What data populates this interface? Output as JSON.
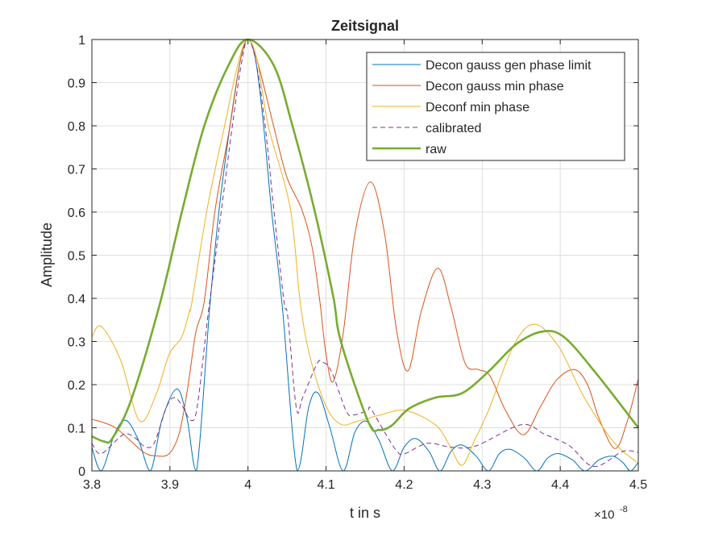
{
  "chart_data": {
    "type": "line",
    "title": "Zeitsignal",
    "xlabel": "t in s",
    "ylabel": "Amplitude",
    "x_exponent_base": "×10",
    "x_exponent_power": "-8",
    "xlim": [
      3.8,
      4.5
    ],
    "ylim": [
      0,
      1
    ],
    "xticks": [
      3.8,
      3.9,
      4,
      4.1,
      4.2,
      4.3,
      4.4,
      4.5
    ],
    "xtick_labels": [
      "3.8",
      "3.9",
      "4",
      "4.1",
      "4.2",
      "4.3",
      "4.4",
      "4.5"
    ],
    "yticks": [
      0,
      0.1,
      0.2,
      0.3,
      0.4,
      0.5,
      0.6,
      0.7,
      0.8,
      0.9,
      1
    ],
    "ytick_labels": [
      "0",
      "0.1",
      "0.2",
      "0.3",
      "0.4",
      "0.5",
      "0.6",
      "0.7",
      "0.8",
      "0.9",
      "1"
    ],
    "grid": true,
    "legend_position": "top-right",
    "series": [
      {
        "name": "Decon gauss gen phase limit",
        "color": "#0072BD",
        "width": 1,
        "dash": "",
        "points": [
          [
            3.8,
            0.055
          ],
          [
            3.812,
            0
          ],
          [
            3.83,
            0.09
          ],
          [
            3.844,
            0.117
          ],
          [
            3.86,
            0.07
          ],
          [
            3.875,
            0
          ],
          [
            3.89,
            0.12
          ],
          [
            3.909,
            0.19
          ],
          [
            3.922,
            0.12
          ],
          [
            3.934,
            0
          ],
          [
            3.951,
            0.38
          ],
          [
            3.963,
            0.606
          ],
          [
            3.977,
            0.8
          ],
          [
            3.99,
            0.95
          ],
          [
            4.0,
            1.0
          ],
          [
            4.01,
            0.95
          ],
          [
            4.02,
            0.8
          ],
          [
            4.03,
            0.606
          ],
          [
            4.044,
            0.38
          ],
          [
            4.063,
            0
          ],
          [
            4.078,
            0.15
          ],
          [
            4.09,
            0.18
          ],
          [
            4.105,
            0.1
          ],
          [
            4.122,
            0
          ],
          [
            4.137,
            0.09
          ],
          [
            4.152,
            0.115
          ],
          [
            4.168,
            0.07
          ],
          [
            4.185,
            0
          ],
          [
            4.2,
            0.055
          ],
          [
            4.215,
            0.075
          ],
          [
            4.232,
            0.045
          ],
          [
            4.246,
            0
          ],
          [
            4.26,
            0.045
          ],
          [
            4.274,
            0.06
          ],
          [
            4.292,
            0.035
          ],
          [
            4.308,
            0
          ],
          [
            4.322,
            0.04
          ],
          [
            4.336,
            0.05
          ],
          [
            4.354,
            0.03
          ],
          [
            4.37,
            0
          ],
          [
            4.384,
            0.03
          ],
          [
            4.398,
            0.04
          ],
          [
            4.416,
            0.025
          ],
          [
            4.432,
            0
          ],
          [
            4.45,
            0.026
          ],
          [
            4.467,
            0.034
          ],
          [
            4.48,
            0.02
          ],
          [
            4.49,
            0
          ],
          [
            4.5,
            0.02
          ]
        ]
      },
      {
        "name": "Decon gauss min phase",
        "color": "#D95319",
        "width": 1,
        "dash": "",
        "points": [
          [
            3.8,
            0.12
          ],
          [
            3.83,
            0.1
          ],
          [
            3.865,
            0.045
          ],
          [
            3.882,
            0.035
          ],
          [
            3.899,
            0.04
          ],
          [
            3.912,
            0.088
          ],
          [
            3.923,
            0.195
          ],
          [
            3.933,
            0.32
          ],
          [
            3.944,
            0.394
          ],
          [
            3.958,
            0.606
          ],
          [
            3.977,
            0.8
          ],
          [
            3.99,
            0.95
          ],
          [
            4.0,
            1.0
          ],
          [
            4.012,
            0.95
          ],
          [
            4.033,
            0.798
          ],
          [
            4.05,
            0.68
          ],
          [
            4.069,
            0.606
          ],
          [
            4.082,
            0.52
          ],
          [
            4.092,
            0.394
          ],
          [
            4.1,
            0.27
          ],
          [
            4.109,
            0.207
          ],
          [
            4.122,
            0.32
          ],
          [
            4.137,
            0.55
          ],
          [
            4.157,
            0.67
          ],
          [
            4.175,
            0.55
          ],
          [
            4.19,
            0.33
          ],
          [
            4.205,
            0.232
          ],
          [
            4.222,
            0.37
          ],
          [
            4.243,
            0.47
          ],
          [
            4.26,
            0.38
          ],
          [
            4.278,
            0.25
          ],
          [
            4.295,
            0.235
          ],
          [
            4.31,
            0.22
          ],
          [
            4.33,
            0.14
          ],
          [
            4.353,
            0.084
          ],
          [
            4.375,
            0.15
          ],
          [
            4.395,
            0.21
          ],
          [
            4.418,
            0.235
          ],
          [
            4.435,
            0.2
          ],
          [
            4.45,
            0.12
          ],
          [
            4.47,
            0.052
          ],
          [
            4.485,
            0.11
          ],
          [
            4.5,
            0.213
          ]
        ]
      },
      {
        "name": "Deconf min phase",
        "color": "#EDB120",
        "width": 1,
        "dash": "",
        "points": [
          [
            3.8,
            0.31
          ],
          [
            3.812,
            0.335
          ],
          [
            3.837,
            0.256
          ],
          [
            3.861,
            0.116
          ],
          [
            3.882,
            0.176
          ],
          [
            3.899,
            0.27
          ],
          [
            3.915,
            0.31
          ],
          [
            3.925,
            0.37
          ],
          [
            3.928,
            0.39
          ],
          [
            3.948,
            0.61
          ],
          [
            3.97,
            0.8
          ],
          [
            3.988,
            0.95
          ],
          [
            4.0,
            1.0
          ],
          [
            4.012,
            0.95
          ],
          [
            4.026,
            0.8
          ],
          [
            4.054,
            0.61
          ],
          [
            4.067,
            0.39
          ],
          [
            4.08,
            0.26
          ],
          [
            4.1,
            0.15
          ],
          [
            4.119,
            0.108
          ],
          [
            4.14,
            0.115
          ],
          [
            4.17,
            0.13
          ],
          [
            4.202,
            0.14
          ],
          [
            4.24,
            0.107
          ],
          [
            4.258,
            0.06
          ],
          [
            4.274,
            0.013
          ],
          [
            4.29,
            0.07
          ],
          [
            4.309,
            0.144
          ],
          [
            4.34,
            0.29
          ],
          [
            4.367,
            0.34
          ],
          [
            4.398,
            0.288
          ],
          [
            4.429,
            0.176
          ],
          [
            4.467,
            0.07
          ],
          [
            4.498,
            0.02
          ]
        ]
      },
      {
        "name": "calibrated",
        "color": "#7E2F8E",
        "width": 1,
        "dash": "6 4",
        "points": [
          [
            3.8,
            0.064
          ],
          [
            3.812,
            0.04
          ],
          [
            3.84,
            0.084
          ],
          [
            3.855,
            0.077
          ],
          [
            3.868,
            0.056
          ],
          [
            3.88,
            0.065
          ],
          [
            3.896,
            0.15
          ],
          [
            3.906,
            0.17
          ],
          [
            3.916,
            0.15
          ],
          [
            3.927,
            0.117
          ],
          [
            3.935,
            0.15
          ],
          [
            3.948,
            0.35
          ],
          [
            3.955,
            0.45
          ],
          [
            3.967,
            0.62
          ],
          [
            3.98,
            0.8
          ],
          [
            3.992,
            0.95
          ],
          [
            4.0,
            1.0
          ],
          [
            4.01,
            0.95
          ],
          [
            4.022,
            0.8
          ],
          [
            4.033,
            0.606
          ],
          [
            4.046,
            0.394
          ],
          [
            4.051,
            0.357
          ],
          [
            4.062,
            0.145
          ],
          [
            4.07,
            0.17
          ],
          [
            4.088,
            0.247
          ],
          [
            4.095,
            0.253
          ],
          [
            4.107,
            0.23
          ],
          [
            4.126,
            0.138
          ],
          [
            4.136,
            0.13
          ],
          [
            4.153,
            0.14
          ],
          [
            4.157,
            0.145
          ],
          [
            4.175,
            0.09
          ],
          [
            4.191,
            0.045
          ],
          [
            4.201,
            0.04
          ],
          [
            4.23,
            0.064
          ],
          [
            4.26,
            0.055
          ],
          [
            4.292,
            0.058
          ],
          [
            4.35,
            0.107
          ],
          [
            4.38,
            0.085
          ],
          [
            4.412,
            0.058
          ],
          [
            4.443,
            0.01
          ],
          [
            4.48,
            0.045
          ],
          [
            4.5,
            0.043
          ]
        ]
      },
      {
        "name": "raw",
        "color": "#77AC30",
        "width": 2.6,
        "dash": "",
        "points": [
          [
            3.8,
            0.08
          ],
          [
            3.816,
            0.068
          ],
          [
            3.826,
            0.075
          ],
          [
            3.85,
            0.163
          ],
          [
            3.886,
            0.38
          ],
          [
            3.916,
            0.606
          ],
          [
            3.944,
            0.8
          ],
          [
            3.975,
            0.94
          ],
          [
            4.0,
            1.0
          ],
          [
            4.033,
            0.94
          ],
          [
            4.057,
            0.8
          ],
          [
            4.085,
            0.606
          ],
          [
            4.109,
            0.406
          ],
          [
            4.119,
            0.3
          ],
          [
            4.154,
            0.114
          ],
          [
            4.168,
            0.095
          ],
          [
            4.184,
            0.105
          ],
          [
            4.206,
            0.144
          ],
          [
            4.24,
            0.17
          ],
          [
            4.274,
            0.18
          ],
          [
            4.309,
            0.232
          ],
          [
            4.343,
            0.293
          ],
          [
            4.377,
            0.323
          ],
          [
            4.405,
            0.31
          ],
          [
            4.446,
            0.226
          ],
          [
            4.5,
            0.1
          ]
        ]
      }
    ]
  }
}
